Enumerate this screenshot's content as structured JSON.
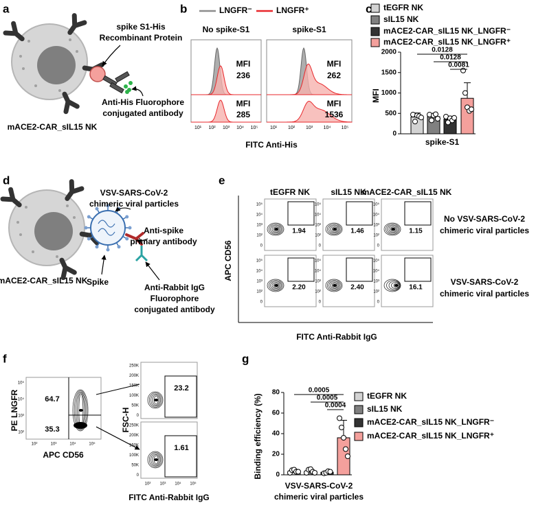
{
  "figure": {
    "panel_a": {
      "letter": "a",
      "labels": [
        "spike S1-His",
        "Recombinant Protein",
        "Anti-His Fluorophore",
        "conjugated antibody"
      ],
      "cell": "mACE2-CAR_sIL15 NK"
    },
    "panel_b": {
      "letter": "b",
      "legend": [
        {
          "name": "LNGFR⁻",
          "color": "#8c8c8c"
        },
        {
          "name": "LNGFR⁺",
          "color": "#e8262a"
        }
      ],
      "columns": [
        {
          "title": "No spike-S1",
          "mfi": [
            "236",
            "285"
          ]
        },
        {
          "title": "spike-S1",
          "mfi": [
            "262",
            "1536"
          ]
        }
      ],
      "mfi_label": "MFI",
      "x_ticks": [
        "10¹",
        "10²",
        "10³",
        "10⁴",
        "10⁵"
      ],
      "x_label": "FITC Anti-His"
    },
    "panel_d": {
      "letter": "d",
      "labels": [
        "VSV-SARS-CoV-2",
        "chimeric viral particles",
        "Anti-spike",
        "primary antibody",
        "Spike",
        "Anti-Rabbit IgG",
        "Fluorophore",
        "conjugated antibody"
      ],
      "cell": "mACE2-CAR_sIL15 NK"
    },
    "panel_e": {
      "letter": "e",
      "columns": [
        "tEGFR NK",
        "sIL15 NK",
        "mACE2-CAR_sIL15 NK"
      ],
      "rows": [
        {
          "label": [
            "No VSV-SARS-CoV-2",
            "chimeric viral particles"
          ],
          "gates": [
            "1.94",
            "1.46",
            "1.15"
          ]
        },
        {
          "label": [
            "VSV-SARS-CoV-2",
            "chimeric viral particles"
          ],
          "gates": [
            "2.20",
            "2.40",
            "16.1"
          ]
        }
      ],
      "y_ticks": [
        "10⁵",
        "10⁴",
        "10³",
        "10²",
        "0"
      ],
      "y_label": "APC CD56",
      "x_label": "FITC Anti-Rabbit IgG"
    },
    "panel_f": {
      "letter": "f",
      "y_label": "PE LNGFR",
      "x_label": "APC CD56",
      "gates": [
        "64.7",
        "35.3"
      ],
      "log_ticks": [
        "10²",
        "10³",
        "10⁴",
        "10⁵"
      ],
      "right_y_label": "FSC-H",
      "right_y_ticks": [
        "250K",
        "200K",
        "150K",
        "100K",
        "50K",
        "0"
      ],
      "right_gates": [
        "23.2",
        "1.61"
      ],
      "right_x_label": "FITC Anti-Rabbit IgG"
    }
  },
  "chart_data": [
    {
      "letter": "c",
      "type": "bar",
      "categories": [
        "spike-S1"
      ],
      "y_label": "MFI",
      "ylim": [
        0,
        2000
      ],
      "yticks": [
        0,
        500,
        1000,
        1500,
        2000
      ],
      "series": [
        {
          "name": "tEGFR NK",
          "color": "#d3d3d3",
          "values": [
            410
          ],
          "errors": [
            100
          ],
          "points": [
            [
              470,
              300,
              450,
              430,
              400
            ]
          ]
        },
        {
          "name": "sIL15 NK",
          "color": "#808080",
          "values": [
            420
          ],
          "errors": [
            80
          ],
          "points": [
            [
              470,
              330,
              450,
              480,
              370
            ]
          ]
        },
        {
          "name": "mACE2-CAR_sIL15 NK_LNGFR⁻",
          "color": "#333333",
          "values": [
            360
          ],
          "errors": [
            70
          ],
          "points": [
            [
              420,
              280,
              380,
              330,
              390
            ]
          ]
        },
        {
          "name": "mACE2-CAR_sIL15 NK_LNGFR⁺",
          "color": "#f4a09c",
          "values": [
            870
          ],
          "errors": [
            380
          ],
          "points": [
            [
              1550,
              1000,
              650,
              560,
              600
            ]
          ]
        }
      ],
      "annotations": [
        "0.0128",
        "0.0128",
        "0.0081"
      ]
    },
    {
      "letter": "g",
      "type": "bar",
      "categories": [
        "VSV-SARS-CoV-2\nchimeric viral particles"
      ],
      "y_label": "Binding efficiency (%)",
      "ylim": [
        0,
        80
      ],
      "yticks": [
        0,
        20,
        40,
        60,
        80
      ],
      "series": [
        {
          "name": "tEGFR NK",
          "color": "#d3d3d3",
          "values": [
            3.5
          ],
          "errors": [
            1.8
          ],
          "points": [
            [
              2,
              4.5,
              5,
              3,
              3
            ]
          ]
        },
        {
          "name": "sIL15 NK",
          "color": "#808080",
          "values": [
            3.5
          ],
          "errors": [
            1.8
          ],
          "points": [
            [
              2,
              5,
              5.5,
              3,
              2
            ]
          ]
        },
        {
          "name": "mACE2-CAR_sIL15 NK_LNGFR⁻",
          "color": "#333333",
          "values": [
            2.5
          ],
          "errors": [
            1
          ],
          "points": [
            [
              1.5,
              2,
              3.5,
              3
            ]
          ]
        },
        {
          "name": "mACE2-CAR_sIL15 NK_LNGFR⁺",
          "color": "#f4a09c",
          "values": [
            36
          ],
          "errors": [
            17
          ],
          "points": [
            [
              55,
              46,
              36,
              25,
              18
            ]
          ]
        }
      ],
      "annotations": [
        "0.0005",
        "0.0005",
        "0.0004"
      ]
    }
  ]
}
